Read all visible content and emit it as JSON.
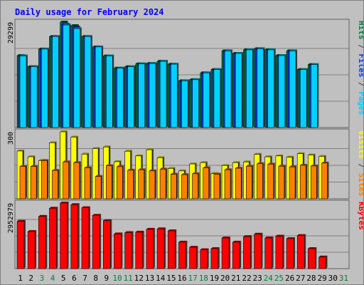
{
  "chart_data": {
    "type": "bar",
    "title": "Daily usage for February 2024",
    "categories": [
      "1",
      "2",
      "3",
      "4",
      "5",
      "6",
      "7",
      "8",
      "9",
      "10",
      "11",
      "12",
      "13",
      "14",
      "15",
      "16",
      "17",
      "18",
      "19",
      "20",
      "21",
      "22",
      "23",
      "24",
      "25",
      "26",
      "27",
      "28",
      "29",
      "30",
      "31"
    ],
    "weekend_days": [
      "3",
      "4",
      "10",
      "11",
      "17",
      "18",
      "24",
      "25",
      "31"
    ],
    "panels": [
      {
        "name": "top",
        "max_label": "29299",
        "ylim": [
          0,
          29299
        ],
        "right_labels": [
          {
            "text": "Hits",
            "color": "#008040"
          },
          {
            "text": " / ",
            "color": "#404040"
          },
          {
            "text": "Files",
            "color": "#0040ff"
          },
          {
            "text": " / ",
            "color": "#404040"
          },
          {
            "text": "Pages",
            "color": "#00d0ff"
          }
        ],
        "series": [
          {
            "name": "Hits",
            "color": "#008040",
            "values": [
              20000,
              16900,
              21800,
              25300,
              29299,
              28300,
              25300,
              22400,
              19900,
              16500,
              16900,
              17700,
              17800,
              18400,
              17600,
              13000,
              13300,
              15200,
              16100,
              21300,
              20600,
              21600,
              21900,
              21600,
              20000,
              21300,
              16100,
              17500,
              null,
              null,
              null
            ]
          },
          {
            "name": "Files",
            "color": "#0040ff",
            "values": [
              19700,
              16700,
              21600,
              25000,
              28700,
              27900,
              24900,
              22100,
              19500,
              16200,
              16700,
              17400,
              17600,
              18200,
              17300,
              12800,
              13100,
              15000,
              15900,
              21100,
              20400,
              21400,
              21700,
              21400,
              19800,
              21100,
              15900,
              17300,
              null,
              null,
              null
            ]
          },
          {
            "name": "Pages",
            "color": "#00d0ff",
            "values": [
              19900,
              16900,
              21800,
              25300,
              28500,
              27500,
              25300,
              22400,
              19900,
              16500,
              16900,
              17700,
              17800,
              18400,
              17600,
              13000,
              13300,
              15200,
              16100,
              21300,
              20600,
              21600,
              21900,
              21600,
              20000,
              21300,
              16100,
              17500,
              null,
              null,
              null
            ]
          }
        ]
      },
      {
        "name": "middle",
        "max_label": "300",
        "ylim": [
          0,
          300
        ],
        "right_labels": [
          {
            "text": "Visits",
            "color": "#ffff00"
          },
          {
            "text": " / ",
            "color": "#404040"
          },
          {
            "text": "Sites",
            "color": "#ff8000"
          }
        ],
        "series": [
          {
            "name": "Visits",
            "color": "#ffff00",
            "values": [
              214,
              188,
              171,
              251,
              300,
              276,
              200,
              225,
              232,
              166,
              213,
              192,
              220,
              184,
              136,
              125,
              156,
              162,
              113,
              149,
              162,
              165,
              199,
              188,
              192,
              186,
              202,
              196,
              190,
              null,
              null
            ]
          },
          {
            "name": "Sites",
            "color": "#ff8000",
            "values": [
              145,
              145,
              171,
              127,
              165,
              162,
              139,
              100,
              148,
              144,
              128,
              130,
              125,
              133,
              110,
              108,
              112,
              139,
              110,
              130,
              137,
              146,
              157,
              155,
              146,
              143,
              150,
              147,
              160,
              null,
              null
            ]
          }
        ]
      },
      {
        "name": "bottom",
        "max_label": "2952979",
        "ylim": [
          0,
          2952979
        ],
        "right_labels": [
          {
            "text": "KBytes",
            "color": "#ff0000"
          }
        ],
        "series": [
          {
            "name": "KBytes",
            "color": "#ff0000",
            "values": [
              2130000,
              1670000,
              2350000,
              2720000,
              2952979,
              2880000,
              2740000,
              2400000,
              2160000,
              1560000,
              1620000,
              1640000,
              1770000,
              1790000,
              1700000,
              1190000,
              960000,
              850000,
              900000,
              1380000,
              1190000,
              1440000,
              1550000,
              1380000,
              1460000,
              1350000,
              1490000,
              900000,
              520000,
              null,
              null
            ]
          }
        ]
      }
    ],
    "colors": {
      "background": "#c0c0c0",
      "title": "#0000ff",
      "weekday_label": "#000000",
      "weekend_label": "#008040",
      "axis_label": "#000000"
    }
  }
}
